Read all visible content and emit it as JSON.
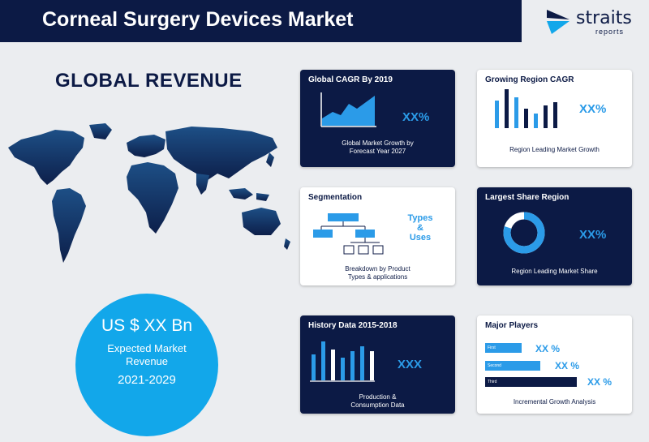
{
  "header": {
    "title": "Corneal Surgery Devices Market"
  },
  "logo": {
    "brand": "straits",
    "sub": "reports",
    "icon": "arrow-mark-icon"
  },
  "global_revenue": {
    "heading": "GLOBAL REVENUE"
  },
  "revenue_circle": {
    "amount": "US $ XX Bn",
    "label": "Expected Market Revenue",
    "years": "2021-2029"
  },
  "cards": {
    "cagr": {
      "title": "Global CAGR By 2019",
      "value": "XX%",
      "caption_line1": "Global Market Growth by",
      "caption_line2": "Forecast Year 2027"
    },
    "growing_region": {
      "title": "Growing Region CAGR",
      "value": "XX%",
      "caption": "Region Leading Market Growth"
    },
    "segmentation": {
      "title": "Segmentation",
      "types_line1": "Types",
      "types_line2": "&",
      "types_line3": "Uses",
      "caption_line1": "Breakdown by Product",
      "caption_line2": "Types & applications"
    },
    "largest_share": {
      "title": "Largest Share Region",
      "value": "XX%",
      "caption": "Region Leading Market Share",
      "share_fraction": 0.8
    },
    "history": {
      "title": "History Data 2015-2018",
      "value": "XXX",
      "caption_line1": "Production &",
      "caption_line2": "Consumption Data"
    },
    "major_players": {
      "title": "Major Players",
      "players": [
        {
          "label": "First",
          "value": "XX %",
          "level": 0.3
        },
        {
          "label": "Second",
          "value": "XX %",
          "level": 0.45
        },
        {
          "label": "Third",
          "value": "XX %",
          "level": 0.75
        }
      ],
      "caption": "Incremental Growth Analysis"
    }
  },
  "colors": {
    "navy": "#0c1a45",
    "accent": "#2b9be8",
    "circle": "#12a7ea",
    "background": "#ebedf0"
  }
}
